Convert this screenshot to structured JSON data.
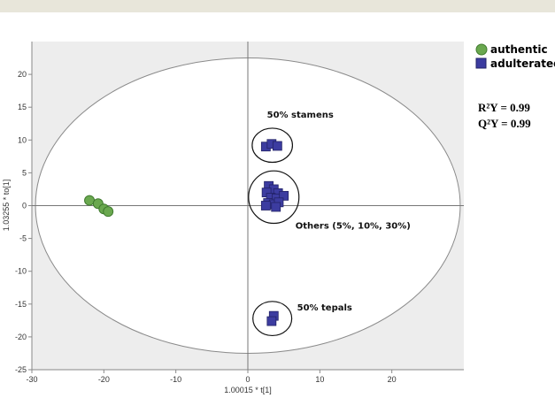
{
  "chart_data": {
    "type": "scatter",
    "xlabel": "1.00015 * t[1]",
    "ylabel": "1.03255 * to[1]",
    "xlim": [
      -30,
      30
    ],
    "ylim": [
      -25,
      25
    ],
    "x_ticks": [
      -30,
      -20,
      -10,
      0,
      10,
      20
    ],
    "y_ticks": [
      -25,
      -20,
      -15,
      -10,
      -5,
      0,
      5,
      10,
      15,
      20
    ],
    "grid": false,
    "legend_position": "top-right",
    "series": [
      {
        "name": "authentic",
        "marker": "circle",
        "color": "#6aa84f",
        "points": [
          {
            "x": -22.0,
            "y": 0.8
          },
          {
            "x": -20.8,
            "y": 0.3
          },
          {
            "x": -20.0,
            "y": -0.5
          },
          {
            "x": -19.4,
            "y": -0.9
          }
        ]
      },
      {
        "name": "adulterated",
        "marker": "square",
        "color": "#3c3ca0",
        "points": [
          {
            "x": 2.5,
            "y": 9.0
          },
          {
            "x": 3.3,
            "y": 9.4
          },
          {
            "x": 4.1,
            "y": 9.1
          },
          {
            "x": 2.9,
            "y": 3.0
          },
          {
            "x": 3.6,
            "y": 2.5
          },
          {
            "x": 2.6,
            "y": 2.0
          },
          {
            "x": 4.2,
            "y": 1.9
          },
          {
            "x": 3.2,
            "y": 1.2
          },
          {
            "x": 4.0,
            "y": 1.1
          },
          {
            "x": 5.0,
            "y": 1.5
          },
          {
            "x": 2.8,
            "y": 0.4
          },
          {
            "x": 3.6,
            "y": 0.2
          },
          {
            "x": 4.3,
            "y": 0.5
          },
          {
            "x": 2.5,
            "y": 0.0
          },
          {
            "x": 3.9,
            "y": -0.2
          },
          {
            "x": 3.6,
            "y": -16.8
          },
          {
            "x": 3.3,
            "y": -17.6
          }
        ]
      }
    ],
    "ellipse": {
      "cx": 0,
      "cy": 0,
      "rx": 29.5,
      "ry": 22.5
    },
    "groups": [
      {
        "label": "50% stamens",
        "cx": 3.4,
        "cy": 9.2,
        "rx": 2.8,
        "ry": 2.6
      },
      {
        "label": "Others (5%, 10%, 30%)",
        "cx": 3.6,
        "cy": 1.3,
        "rx": 3.5,
        "ry": 4.0
      },
      {
        "label": "50% tepals",
        "cx": 3.4,
        "cy": -17.2,
        "rx": 2.7,
        "ry": 2.6
      }
    ],
    "stats": {
      "r2y": "R²Y = 0.99",
      "q2y": "Q²Y = 0.99"
    }
  }
}
